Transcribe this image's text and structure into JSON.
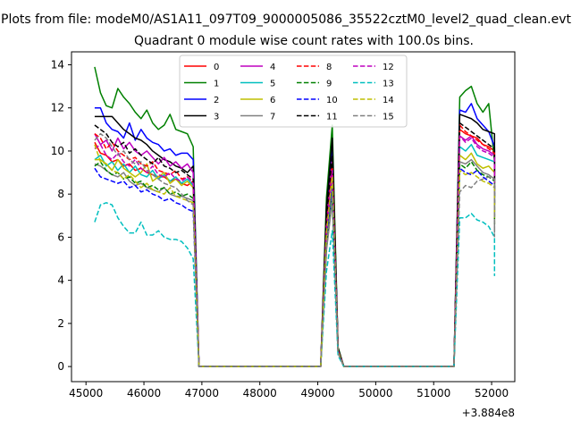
{
  "figure": {
    "suptitle": "Plots from file: modeM0/AS1A11_097T09_9000005086_35522cztM0_level2_quad_clean.evt",
    "title": "Quadrant 0 module wise count rates with 100.0s bins.",
    "offset_label": "+3.884e8"
  },
  "chart_data": {
    "type": "line",
    "title": "Quadrant 0 module wise count rates with 100.0s bins.",
    "xlabel": "",
    "ylabel": "",
    "x_offset": 388400000,
    "xlim": [
      44750,
      52400
    ],
    "ylim": [
      -0.7,
      14.6
    ],
    "xticks": [
      45000,
      46000,
      47000,
      48000,
      49000,
      50000,
      51000,
      52000
    ],
    "yticks": [
      0,
      2,
      4,
      6,
      8,
      10,
      12,
      14
    ],
    "x_tick_labels": [
      "45000",
      "46000",
      "47000",
      "48000",
      "49000",
      "50000",
      "51000",
      "52000"
    ],
    "y_tick_labels": [
      "0",
      "2",
      "4",
      "6",
      "8",
      "10",
      "12",
      "14"
    ],
    "legend_position": "top-center",
    "legend_columns": 4,
    "segments": [
      {
        "start": 45150,
        "end": 46850,
        "step": 100
      },
      {
        "start": 46950,
        "end": 49050,
        "step": 100
      },
      {
        "start": 49150,
        "end": 49350,
        "step": 100
      },
      {
        "start": 49450,
        "end": 51350,
        "step": 100
      },
      {
        "start": 51450,
        "end": 52050,
        "step": 100
      }
    ],
    "series": [
      {
        "name": "0",
        "color": "#ff0000",
        "dash": "solid",
        "seg1": [
          10.4,
          9.9,
          9.8,
          9.5,
          9.6,
          9.3,
          9.4,
          9.1,
          9.2,
          9.0,
          8.9,
          8.8,
          8.8,
          8.6,
          8.7,
          8.5,
          8.4,
          8.6
        ],
        "peak": 9.6,
        "seg4": [
          11.0,
          10.8,
          10.7,
          10.6,
          10.3,
          10.2,
          10.0
        ],
        "end": 8.8
      },
      {
        "name": "1",
        "color": "#008000",
        "dash": "solid",
        "seg1": [
          13.9,
          12.7,
          12.1,
          12.0,
          12.9,
          12.5,
          12.2,
          11.8,
          11.5,
          11.9,
          11.3,
          11.0,
          11.2,
          11.7,
          11.0,
          10.9,
          10.8,
          10.2
        ],
        "peak": 11.2,
        "seg4": [
          12.5,
          12.8,
          13.0,
          12.2,
          11.8,
          12.2,
          9.5
        ],
        "end": 7.9
      },
      {
        "name": "2",
        "color": "#0000ff",
        "dash": "solid",
        "seg1": [
          12.0,
          12.0,
          11.3,
          11.0,
          10.9,
          10.6,
          11.3,
          10.5,
          11.0,
          10.6,
          10.4,
          10.3,
          10.0,
          10.1,
          9.8,
          9.9,
          9.9,
          9.6
        ],
        "peak": 10.3,
        "seg4": [
          11.9,
          11.8,
          12.2,
          11.5,
          11.2,
          10.9,
          10.2
        ],
        "end": 8.7
      },
      {
        "name": "3",
        "color": "#000000",
        "dash": "solid",
        "seg1": [
          11.6,
          11.6,
          11.6,
          11.6,
          11.3,
          11.0,
          10.8,
          10.6,
          10.5,
          10.3,
          10.0,
          9.8,
          9.6,
          9.5,
          9.3,
          9.2,
          9.0,
          9.3
        ],
        "peak": 10.6,
        "seg4": [
          11.7,
          11.6,
          11.5,
          11.3,
          11.0,
          10.9,
          10.8
        ],
        "end": 7.5
      },
      {
        "name": "4",
        "color": "#bf00bf",
        "dash": "solid",
        "seg1": [
          10.8,
          10.3,
          10.5,
          10.0,
          10.6,
          10.1,
          10.4,
          10.0,
          9.8,
          10.0,
          9.7,
          9.4,
          9.7,
          9.3,
          9.5,
          9.2,
          9.4,
          9.0
        ],
        "peak": 8.9,
        "seg4": [
          10.7,
          10.5,
          10.7,
          10.3,
          10.1,
          10.0,
          9.8
        ],
        "end": 7.0
      },
      {
        "name": "5",
        "color": "#00bfbf",
        "dash": "solid",
        "seg1": [
          9.6,
          9.8,
          9.3,
          9.5,
          9.1,
          9.4,
          9.0,
          9.3,
          8.9,
          8.8,
          9.1,
          8.7,
          8.9,
          8.6,
          8.8,
          8.5,
          8.7,
          8.4
        ],
        "peak": 8.2,
        "seg4": [
          10.2,
          10.0,
          10.3,
          9.8,
          9.7,
          9.6,
          9.5
        ],
        "end": 7.0
      },
      {
        "name": "6",
        "color": "#bfbf00",
        "dash": "solid",
        "seg1": [
          9.6,
          9.6,
          9.4,
          9.1,
          9.6,
          9.2,
          9.0,
          8.8,
          9.0,
          9.4,
          8.6,
          8.8,
          9.0,
          8.5,
          8.7,
          8.4,
          8.6,
          8.3
        ],
        "peak": 7.8,
        "seg4": [
          9.8,
          9.6,
          9.9,
          9.4,
          9.2,
          9.3,
          9.0
        ],
        "end": 6.6
      },
      {
        "name": "7",
        "color": "#808080",
        "dash": "solid",
        "seg1": [
          9.4,
          9.3,
          9.1,
          8.9,
          8.8,
          9.0,
          8.6,
          8.4,
          8.5,
          8.3,
          8.2,
          8.1,
          8.3,
          8.0,
          7.9,
          7.9,
          7.8,
          7.7
        ],
        "peak": 7.7,
        "seg4": [
          9.5,
          9.4,
          9.6,
          9.3,
          9.0,
          8.9,
          8.7
        ],
        "end": 6.2
      },
      {
        "name": "8",
        "color": "#ff0000",
        "dash": "dashed",
        "seg1": [
          10.8,
          10.6,
          10.1,
          10.4,
          10.0,
          9.8,
          9.6,
          9.7,
          9.4,
          9.3,
          9.5,
          9.1,
          9.0,
          8.9,
          9.1,
          8.7,
          8.8,
          8.6
        ],
        "peak": 9.4,
        "seg4": [
          11.2,
          10.9,
          10.7,
          10.5,
          10.3,
          10.1,
          9.9
        ],
        "end": 8.3
      },
      {
        "name": "9",
        "color": "#008000",
        "dash": "dashed",
        "seg1": [
          9.3,
          9.5,
          9.1,
          8.9,
          9.0,
          8.7,
          8.8,
          8.5,
          8.6,
          8.3,
          8.4,
          8.2,
          8.3,
          8.0,
          8.1,
          7.9,
          8.0,
          7.8
        ],
        "peak": 8.1,
        "seg4": [
          9.4,
          9.2,
          9.5,
          9.1,
          8.9,
          8.8,
          8.6
        ],
        "end": 6.6
      },
      {
        "name": "10",
        "color": "#0000ff",
        "dash": "dashed",
        "seg1": [
          9.2,
          8.8,
          8.7,
          8.6,
          8.5,
          8.6,
          8.3,
          8.4,
          8.1,
          8.2,
          8.0,
          7.9,
          7.7,
          7.8,
          7.6,
          7.5,
          7.3,
          7.2
        ],
        "peak": 8.5,
        "seg4": [
          9.2,
          9.0,
          8.9,
          9.1,
          8.8,
          8.6,
          8.4
        ],
        "end": 7.5
      },
      {
        "name": "11",
        "color": "#000000",
        "dash": "dashed",
        "seg1": [
          11.2,
          11.0,
          10.8,
          10.4,
          10.2,
          10.4,
          9.9,
          10.1,
          9.8,
          9.6,
          9.4,
          9.7,
          9.3,
          9.2,
          9.0,
          9.1,
          8.9,
          8.7
        ],
        "peak": 9.8,
        "seg4": [
          11.3,
          11.1,
          10.9,
          10.7,
          10.5,
          10.3,
          10.1
        ],
        "end": 8.6
      },
      {
        "name": "12",
        "color": "#bf00bf",
        "dash": "dashed",
        "seg1": [
          10.1,
          10.3,
          9.8,
          9.6,
          9.9,
          9.5,
          9.3,
          9.6,
          9.2,
          9.0,
          9.3,
          8.9,
          8.8,
          9.0,
          8.7,
          8.6,
          8.8,
          8.5
        ],
        "peak": 9.1,
        "seg4": [
          10.7,
          10.4,
          10.6,
          10.2,
          10.0,
          9.9,
          9.7
        ],
        "end": 8.0
      },
      {
        "name": "13",
        "color": "#00bfbf",
        "dash": "dashed",
        "seg1": [
          6.7,
          7.5,
          7.6,
          7.5,
          6.9,
          6.5,
          6.2,
          6.2,
          6.7,
          6.1,
          6.1,
          6.3,
          6.0,
          5.9,
          5.9,
          5.8,
          5.5,
          5.0
        ],
        "peak": 6.3,
        "seg4": [
          6.9,
          6.9,
          7.1,
          6.8,
          6.7,
          6.5,
          6.0
        ],
        "end": 4.2
      },
      {
        "name": "14",
        "color": "#bfbf00",
        "dash": "dashed",
        "seg1": [
          10.3,
          9.5,
          9.4,
          9.1,
          9.0,
          8.7,
          8.9,
          8.6,
          8.3,
          8.5,
          8.2,
          8.1,
          8.0,
          8.3,
          7.9,
          7.8,
          7.7,
          7.6
        ],
        "peak": 8.8,
        "seg4": [
          9.1,
          8.9,
          9.0,
          8.8,
          8.6,
          8.5,
          8.3
        ],
        "end": 6.9
      },
      {
        "name": "15",
        "color": "#808080",
        "dash": "dashed",
        "seg1": [
          10.5,
          10.8,
          10.6,
          10.2,
          9.8,
          10.0,
          9.6,
          9.4,
          9.5,
          9.1,
          8.9,
          8.7,
          8.5,
          8.4,
          8.3,
          8.0,
          7.7,
          7.5
        ],
        "peak": 7.9,
        "seg4": [
          8.1,
          8.4,
          8.3,
          8.6,
          8.7,
          8.8,
          8.7
        ],
        "end": 6.0
      }
    ]
  }
}
